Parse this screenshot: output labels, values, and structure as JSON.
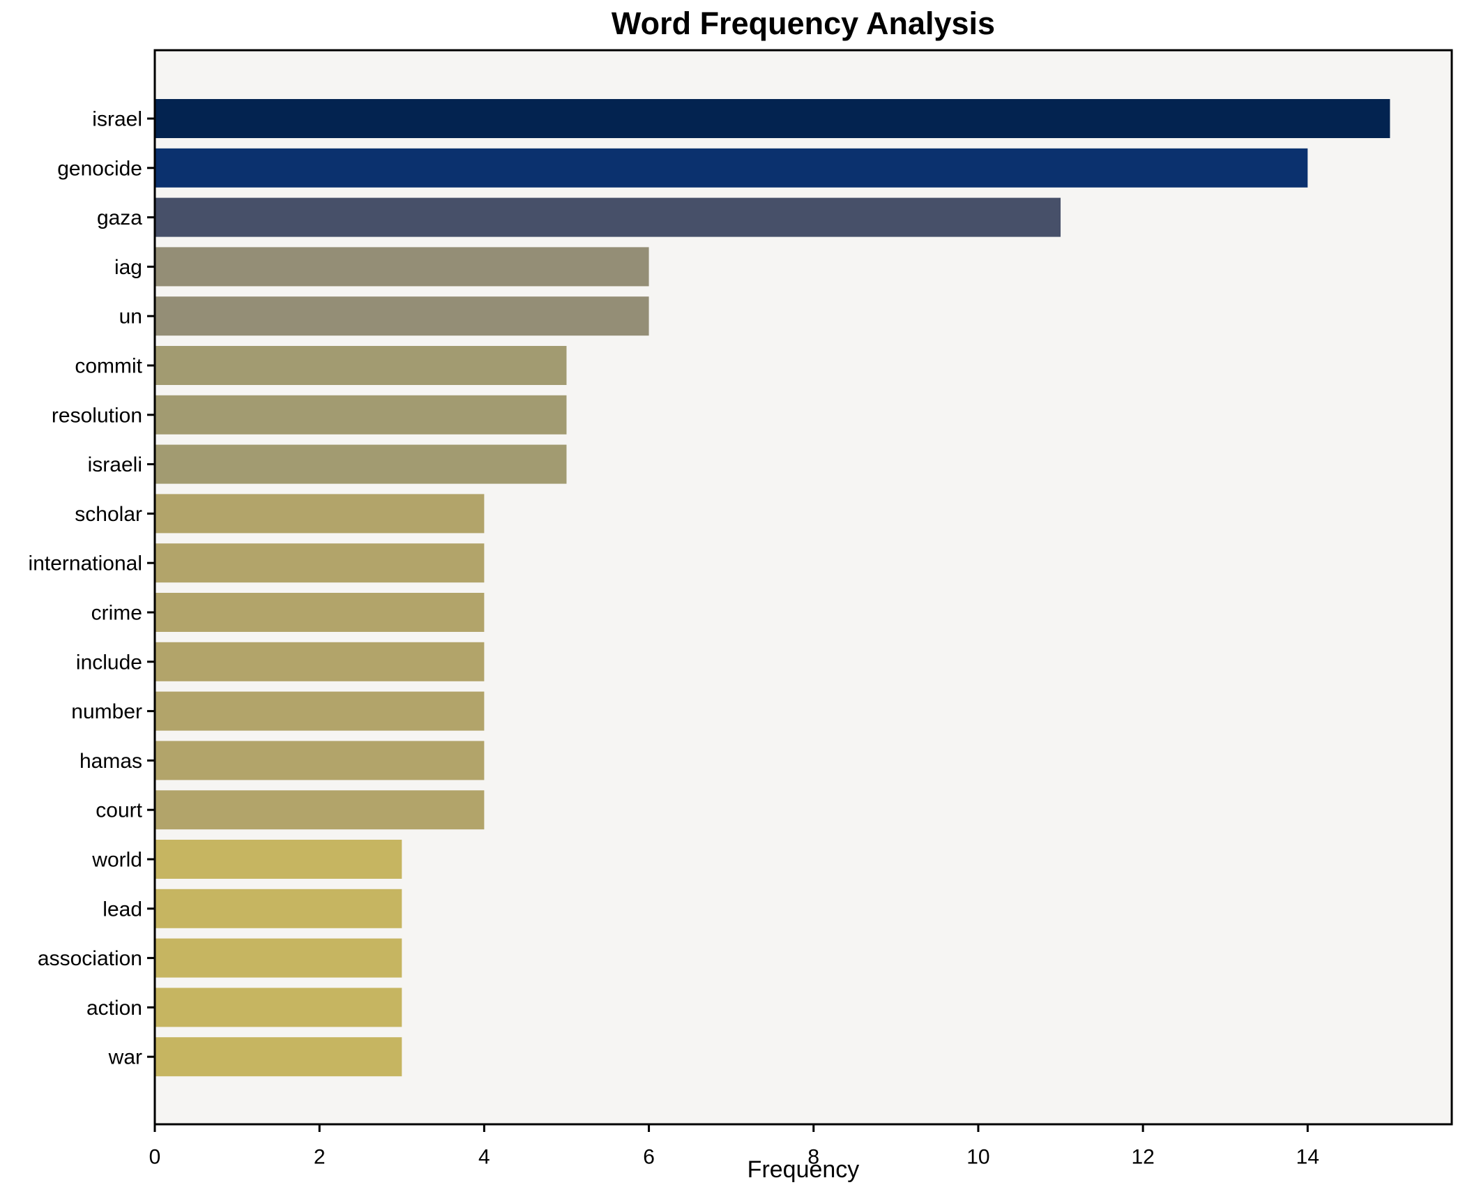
{
  "chart_data": {
    "type": "bar",
    "orientation": "horizontal",
    "title": "Word Frequency Analysis",
    "xlabel": "Frequency",
    "ylabel": "",
    "xlim": [
      0,
      15.75
    ],
    "xticks": [
      0,
      2,
      4,
      6,
      8,
      10,
      12,
      14
    ],
    "grid": false,
    "legend": null,
    "categories": [
      "israel",
      "genocide",
      "gaza",
      "iag",
      "un",
      "commit",
      "resolution",
      "israeli",
      "scholar",
      "international",
      "crime",
      "include",
      "number",
      "hamas",
      "court",
      "world",
      "lead",
      "association",
      "action",
      "war"
    ],
    "values": [
      15,
      14,
      11,
      6,
      6,
      5,
      5,
      5,
      4,
      4,
      4,
      4,
      4,
      4,
      4,
      3,
      3,
      3,
      3,
      3
    ],
    "bar_colors": [
      "#032350",
      "#0b316e",
      "#475069",
      "#948e76",
      "#948e76",
      "#a29b71",
      "#a29b71",
      "#a29b71",
      "#b2a46a",
      "#b2a46a",
      "#b2a46a",
      "#b2a46a",
      "#b2a46a",
      "#b2a46a",
      "#b2a46a",
      "#c6b561",
      "#c6b561",
      "#c6b561",
      "#c6b561",
      "#c6b561"
    ],
    "colors": {
      "plot_bg": "#f6f5f3",
      "figure_bg": "#ffffff",
      "spine": "#000000",
      "text": "#000000"
    }
  }
}
